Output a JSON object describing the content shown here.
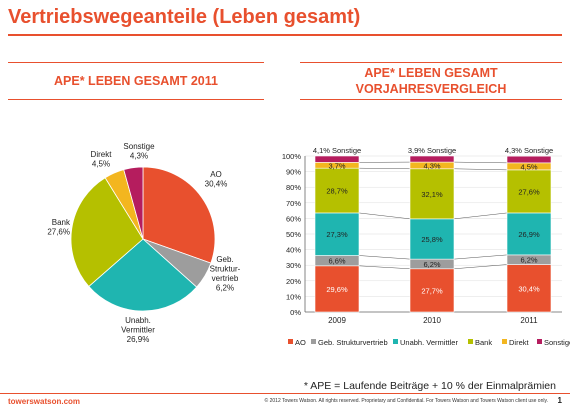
{
  "page": {
    "title": "Vertriebswegeanteile (Leben gesamt)",
    "footnote": "* APE = Laufende Beiträge + 10 % der Einmalprämien",
    "brand": "towerswatson.com",
    "copyright": "© 2012 Towers Watson. All rights reserved. Proprietary and Confidential. For Towers Watson and Towers Watson client use only.",
    "page_number": "1"
  },
  "colors": {
    "AO": "#e8502e",
    "Geb. Strukturvertrieb": "#9d9d9d",
    "Unabh. Vermittler": "#1fb5b0",
    "Bank": "#b5c000",
    "Direkt": "#f3b61f",
    "Sonstige": "#b51d5e"
  },
  "chart_data": [
    {
      "type": "pie",
      "title": "APE* LEBEN GESAMT 2011",
      "slices": [
        {
          "name": "AO",
          "label_lines": [
            "AO",
            "30,4%"
          ],
          "value": 30.4
        },
        {
          "name": "Geb. Strukturvertrieb",
          "label_lines": [
            "Geb.",
            "Struktur-",
            "vertrieb",
            "6,2%"
          ],
          "value": 6.2
        },
        {
          "name": "Unabh. Vermittler",
          "label_lines": [
            "Unabh.",
            "Vermittler",
            "26,9%"
          ],
          "value": 26.9
        },
        {
          "name": "Bank",
          "label_lines": [
            "Bank",
            "27,6%"
          ],
          "value": 27.6
        },
        {
          "name": "Direkt",
          "label_lines": [
            "Direkt",
            "4,5%"
          ],
          "value": 4.5
        },
        {
          "name": "Sonstige",
          "label_lines": [
            "Sonstige",
            "4,3%"
          ],
          "value": 4.3
        }
      ]
    },
    {
      "type": "bar",
      "stacked": true,
      "percent": true,
      "title_lines": [
        "APE* LEBEN GESAMT",
        "VORJAHRESVERGLEICH"
      ],
      "categories": [
        "2009",
        "2010",
        "2011"
      ],
      "ylim": [
        0,
        100
      ],
      "yticks": [
        "0%",
        "10%",
        "20%",
        "30%",
        "40%",
        "50%",
        "60%",
        "70%",
        "80%",
        "90%",
        "100%"
      ],
      "legend_position": "bottom",
      "series": [
        {
          "name": "AO",
          "values": [
            29.6,
            27.7,
            30.4
          ],
          "labels": [
            "29,6%",
            "27,7%",
            "30,4%"
          ]
        },
        {
          "name": "Geb. Strukturvertrieb",
          "values": [
            6.6,
            6.2,
            6.2
          ],
          "labels": [
            "6,6%",
            "6,2%",
            "6,2%"
          ]
        },
        {
          "name": "Unabh. Vermittler",
          "values": [
            27.3,
            25.8,
            26.9
          ],
          "labels": [
            "27,3%",
            "25,8%",
            "26,9%"
          ]
        },
        {
          "name": "Bank",
          "values": [
            28.7,
            32.1,
            27.6
          ],
          "labels": [
            "28,7%",
            "32,1%",
            "27,6%"
          ]
        },
        {
          "name": "Direkt",
          "values": [
            3.7,
            4.3,
            4.5
          ],
          "labels": [
            "3,7%",
            "4,3%",
            "4,5%"
          ]
        },
        {
          "name": "Sonstige",
          "values": [
            4.1,
            3.9,
            4.3
          ],
          "labels": [
            "4,1% Sonstige",
            "3,9% Sonstige",
            "4,3% Sonstige"
          ]
        }
      ]
    }
  ]
}
